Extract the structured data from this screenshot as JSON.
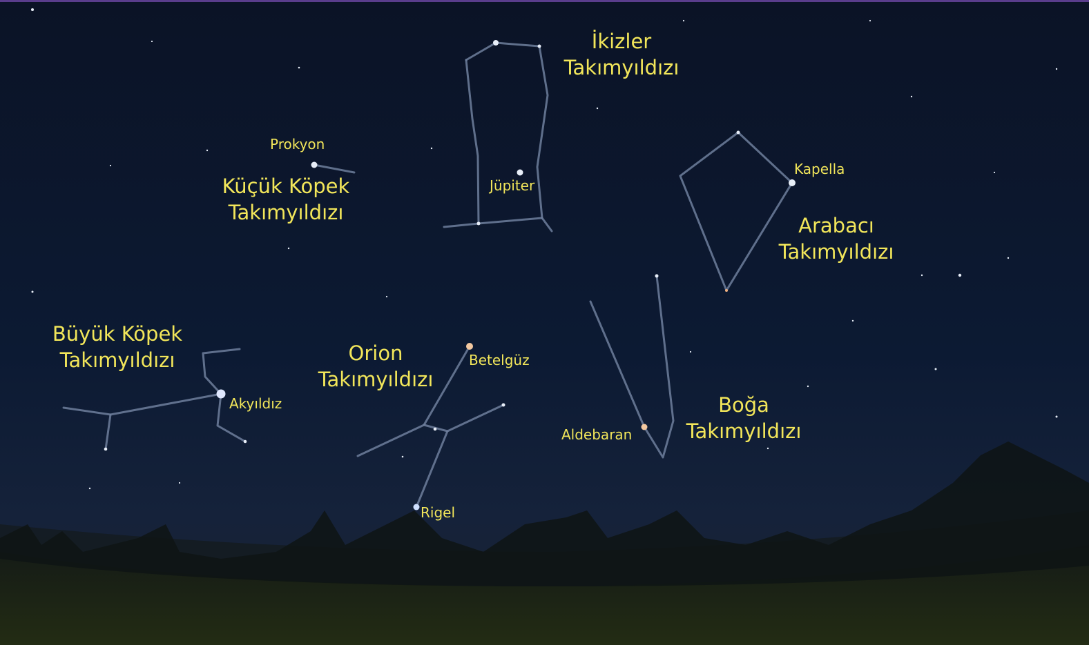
{
  "constellations": [
    {
      "lines": [
        "İkizler",
        "Takımyıldızı"
      ]
    },
    {
      "lines": [
        "Küçük Köpek",
        "Takımyıldızı"
      ]
    },
    {
      "lines": [
        "Arabacı",
        "Takımyıldızı"
      ]
    },
    {
      "lines": [
        "Büyük Köpek",
        "Takımyıldızı"
      ]
    },
    {
      "lines": [
        "Orion",
        "Takımyıldızı"
      ]
    },
    {
      "lines": [
        "Boğa",
        "Takımyıldızı"
      ]
    }
  ],
  "stars": [
    "Prokyon",
    "Jüpiter",
    "Kapella",
    "Akyıldız",
    "Betelgüz",
    "Aldebaran",
    "Rigel"
  ]
}
